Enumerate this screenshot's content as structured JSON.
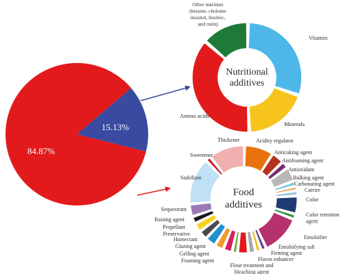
{
  "chart_data": [
    {
      "type": "pie",
      "title": "",
      "slices": [
        {
          "label": "84.87%",
          "value": 84.87,
          "color": "#e31a1c"
        },
        {
          "label": "15.13%",
          "value": 15.13,
          "color": "#3a4aa0"
        }
      ]
    },
    {
      "type": "pie",
      "donut": true,
      "title": "Nutritional additives",
      "title_lines": [
        "Nutritional",
        "additives"
      ],
      "slices": [
        {
          "label": "Vitamin",
          "value": 30,
          "color": "#4db8e8"
        },
        {
          "label": "Minerals",
          "value": 19,
          "color": "#f7c41d"
        },
        {
          "label": "Amino acids",
          "value": 37,
          "color": "#e31a1c"
        },
        {
          "label": "Other nutrients (betaine, choloine, inositol, linoleic, and rutin)",
          "label_lines": [
            "Other nutrients",
            "(betaine, choloine",
            "inositol, linoleic,",
            "and rutin)"
          ],
          "value": 14,
          "color": "#1f7a3a"
        }
      ]
    },
    {
      "type": "pie",
      "donut": true,
      "title": "Food additives",
      "title_lines": [
        "Food",
        "additives"
      ],
      "slices": [
        {
          "label": "Acidity regulator",
          "value": 8.0,
          "color": "#e8730e"
        },
        {
          "label": "Anticaking agent",
          "value": 3.5,
          "color": "#b5321e"
        },
        {
          "label": "Antifoaming agent",
          "value": 2.0,
          "color": "#7a2a6e"
        },
        {
          "label": "Antioxidant",
          "value": 4.0,
          "color": "#b8b8b8"
        },
        {
          "label": "Bulking agent",
          "value": 1.5,
          "color": "#7fc6e6"
        },
        {
          "label": "Carbonating agent",
          "value": 1.2,
          "color": "#f08a2c"
        },
        {
          "label": "Carrier",
          "value": 1.5,
          "color": "#9bc3e0"
        },
        {
          "label": "Color",
          "value": 5.0,
          "color": "#1f3b73"
        },
        {
          "label": "Color retention agent",
          "value": 1.5,
          "color": "#2f8f3f"
        },
        {
          "label": "Emulsifier",
          "value": 11.0,
          "color": "#b5326e"
        },
        {
          "label": "Emulsifying salt",
          "value": 1.5,
          "color": "#6a3a8e"
        },
        {
          "label": "Firming agent",
          "value": 1.5,
          "color": "#e8c21d"
        },
        {
          "label": "Flavor enhancer",
          "value": 2.0,
          "color": "#a8a8a8"
        },
        {
          "label": "Flour treatment and bleaching agent",
          "value": 3.0,
          "color": "#e31a1c"
        },
        {
          "label": "Foaming agent",
          "value": 1.5,
          "color": "#6fb33f"
        },
        {
          "label": "Gelling agent",
          "value": 2.5,
          "color": "#d8205e"
        },
        {
          "label": "Glazing agent",
          "value": 2.5,
          "color": "#f29a2e"
        },
        {
          "label": "Humectant",
          "value": 3.0,
          "color": "#1f8fcf"
        },
        {
          "label": "Preservative",
          "value": 2.5,
          "color": "#4a4a4a"
        },
        {
          "label": "Propellant",
          "value": 2.5,
          "color": "#f5d21d"
        },
        {
          "label": "Raising agent",
          "value": 2.0,
          "color": "#1a1a1a"
        },
        {
          "label": "Sequestrant",
          "value": 3.5,
          "color": "#9a7bb5"
        },
        {
          "label": "Stabilizer",
          "value": 13.0,
          "color": "#bfe0f5"
        },
        {
          "label": "Sweetener",
          "value": 1.5,
          "color": "#c81e2a"
        },
        {
          "label": "Thickener",
          "value": 10.0,
          "color": "#f0b0b0"
        }
      ]
    }
  ]
}
